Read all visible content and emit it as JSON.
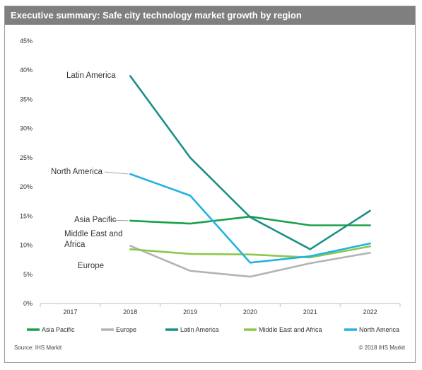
{
  "header": {
    "title": "Executive summary: Safe city technology market growth by region"
  },
  "chart_data": {
    "type": "line",
    "title": "Executive summary: Safe city technology market growth by region",
    "categories": [
      "2017",
      "2018",
      "2019",
      "2020",
      "2021",
      "2022"
    ],
    "x": [
      2017,
      2018,
      2019,
      2020,
      2021,
      2022
    ],
    "ylim": [
      0,
      45
    ],
    "yticks": [
      0,
      5,
      10,
      15,
      20,
      25,
      30,
      35,
      40,
      45
    ],
    "ytick_labels": [
      "0%",
      "5%",
      "10%",
      "15%",
      "20%",
      "25%",
      "30%",
      "35%",
      "40%",
      "45%"
    ],
    "grid": false,
    "legend_position": "bottom",
    "series": [
      {
        "name": "Asia Pacific",
        "color": "#1aa04a",
        "values": [
          null,
          14.2,
          13.7,
          14.9,
          13.4,
          13.4
        ]
      },
      {
        "name": "Europe",
        "color": "#b3b3b3",
        "values": [
          null,
          9.9,
          5.6,
          4.6,
          6.9,
          8.7
        ]
      },
      {
        "name": "Latin America",
        "color": "#1b8f87",
        "values": [
          null,
          39.0,
          25.0,
          14.8,
          9.3,
          15.9
        ]
      },
      {
        "name": "Middle East and Africa",
        "color": "#8cc84b",
        "values": [
          null,
          9.3,
          8.5,
          8.4,
          7.9,
          9.8
        ]
      },
      {
        "name": "North America",
        "color": "#22b2e3",
        "values": [
          null,
          22.2,
          18.5,
          7.0,
          8.1,
          10.3
        ]
      }
    ],
    "annotations": [
      {
        "series": "Latin America",
        "text": "Latin America"
      },
      {
        "series": "North America",
        "text": "North America"
      },
      {
        "series": "Asia Pacific",
        "text": "Asia Pacific"
      },
      {
        "series": "Middle East and Africa",
        "text": "Middle East and\nAfrica"
      },
      {
        "series": "Europe",
        "text": "Europe"
      }
    ]
  },
  "footer": {
    "source": "Source: IHS Markit",
    "copyright": "© 2018 IHS Markit"
  }
}
